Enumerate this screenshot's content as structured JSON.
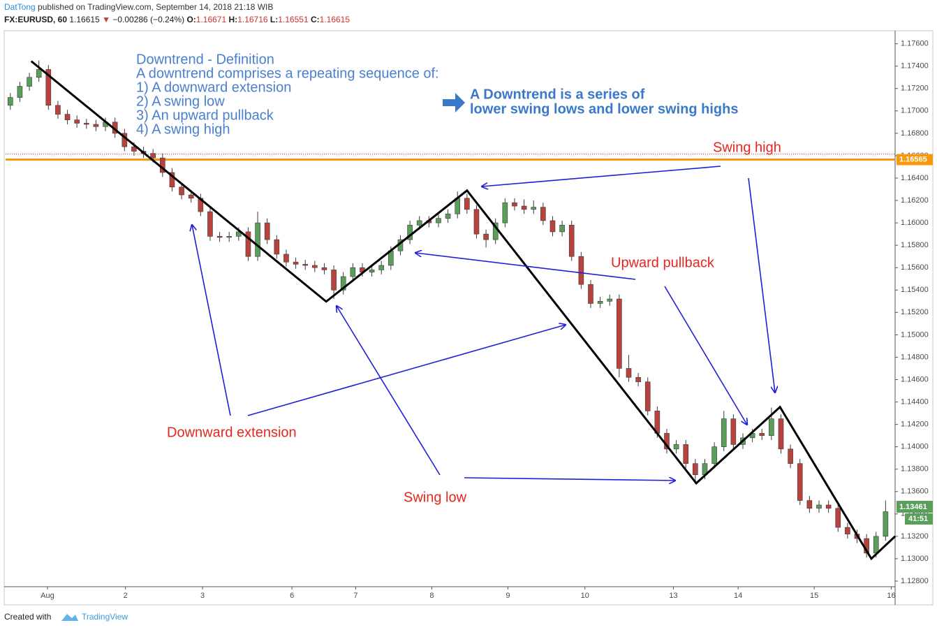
{
  "header": {
    "author": "DatTong",
    "published": "published on TradingView.com, September 14, 2018 21:18 WIB",
    "symbol": "FX:EURUSD, 60",
    "last": "1.16615",
    "change_icon": "▼",
    "change": "−0.00286 (−0.24%)",
    "o_label": "O:",
    "o": "1.16671",
    "h_label": "H:",
    "h": "1.16716",
    "l_label": "L:",
    "l": "1.16551",
    "c_label": "C:",
    "c": "1.16615"
  },
  "footer": {
    "created": "Created with",
    "brand": "TradingView"
  },
  "chart_data": {
    "type": "candlestick",
    "up_color": "#5a9e5c",
    "down_color": "#b8423d",
    "wick_color": "#3a3a3a",
    "ylim": [
      1.1275,
      1.1771
    ],
    "yticks": [
      {
        "value": 1.176,
        "label": "1.17600"
      },
      {
        "value": 1.174,
        "label": "1.17400"
      },
      {
        "value": 1.172,
        "label": "1.17200"
      },
      {
        "value": 1.17,
        "label": "1.17000"
      },
      {
        "value": 1.168,
        "label": "1.16800"
      },
      {
        "value": 1.166,
        "label": "1.16600"
      },
      {
        "value": 1.164,
        "label": "1.16400"
      },
      {
        "value": 1.162,
        "label": "1.16200"
      },
      {
        "value": 1.16,
        "label": "1.16000"
      },
      {
        "value": 1.158,
        "label": "1.15800"
      },
      {
        "value": 1.156,
        "label": "1.15600"
      },
      {
        "value": 1.154,
        "label": "1.15400"
      },
      {
        "value": 1.152,
        "label": "1.15200"
      },
      {
        "value": 1.15,
        "label": "1.15000"
      },
      {
        "value": 1.148,
        "label": "1.14800"
      },
      {
        "value": 1.146,
        "label": "1.14600"
      },
      {
        "value": 1.144,
        "label": "1.14400"
      },
      {
        "value": 1.142,
        "label": "1.14200"
      },
      {
        "value": 1.14,
        "label": "1.14000"
      },
      {
        "value": 1.138,
        "label": "1.13800"
      },
      {
        "value": 1.136,
        "label": "1.13600"
      },
      {
        "value": 1.134,
        "label": "1.13400"
      },
      {
        "value": 1.132,
        "label": "1.13200"
      },
      {
        "value": 1.13,
        "label": "1.13000"
      },
      {
        "value": 1.128,
        "label": "1.12800"
      }
    ],
    "xlim": [
      -0.5,
      93
    ],
    "xticks": [
      {
        "value": 3.9,
        "label": "Aug"
      },
      {
        "value": 12.1,
        "label": "2"
      },
      {
        "value": 20.2,
        "label": "3"
      },
      {
        "value": 29.6,
        "label": "6"
      },
      {
        "value": 36.3,
        "label": "7"
      },
      {
        "value": 44.3,
        "label": "8"
      },
      {
        "value": 52.3,
        "label": "9"
      },
      {
        "value": 60.4,
        "label": "10"
      },
      {
        "value": 69.7,
        "label": "13"
      },
      {
        "value": 76.5,
        "label": "14"
      },
      {
        "value": 84.5,
        "label": "15"
      },
      {
        "value": 92.6,
        "label": "16"
      }
    ],
    "grid": false,
    "ohlc": [
      [
        1.1705,
        1.1716,
        1.1701,
        1.1712
      ],
      [
        1.1712,
        1.1726,
        1.1708,
        1.1722
      ],
      [
        1.1722,
        1.1734,
        1.1718,
        1.173
      ],
      [
        1.173,
        1.1745,
        1.1726,
        1.1737
      ],
      [
        1.1737,
        1.1741,
        1.1701,
        1.1705
      ],
      [
        1.1705,
        1.1709,
        1.1693,
        1.1697
      ],
      [
        1.1697,
        1.1701,
        1.1688,
        1.1692
      ],
      [
        1.1692,
        1.1696,
        1.1685,
        1.1689
      ],
      [
        1.1689,
        1.1693,
        1.1684,
        1.1688
      ],
      [
        1.1688,
        1.1692,
        1.1682,
        1.1686
      ],
      [
        1.1686,
        1.1694,
        1.1682,
        1.169
      ],
      [
        1.169,
        1.1694,
        1.1676,
        1.168
      ],
      [
        1.168,
        1.1684,
        1.1664,
        1.1668
      ],
      [
        1.1668,
        1.1672,
        1.166,
        1.1664
      ],
      [
        1.1664,
        1.1668,
        1.1658,
        1.1662
      ],
      [
        1.1662,
        1.1666,
        1.1654,
        1.1658
      ],
      [
        1.1658,
        1.1662,
        1.1641,
        1.1645
      ],
      [
        1.1645,
        1.1649,
        1.1628,
        1.1632
      ],
      [
        1.1632,
        1.1636,
        1.1621,
        1.1625
      ],
      [
        1.1625,
        1.1629,
        1.1618,
        1.1622
      ],
      [
        1.1622,
        1.1626,
        1.1606,
        1.161
      ],
      [
        1.161,
        1.1614,
        1.1584,
        1.1588
      ],
      [
        1.1588,
        1.1592,
        1.1583,
        1.1587
      ],
      [
        1.1587,
        1.1592,
        1.1583,
        1.1588
      ],
      [
        1.1588,
        1.1596,
        1.1584,
        1.1592
      ],
      [
        1.1592,
        1.1596,
        1.1566,
        1.157
      ],
      [
        1.157,
        1.161,
        1.1566,
        1.16
      ],
      [
        1.16,
        1.1604,
        1.1581,
        1.1585
      ],
      [
        1.1585,
        1.1589,
        1.1568,
        1.1572
      ],
      [
        1.1572,
        1.1576,
        1.1561,
        1.1565
      ],
      [
        1.1565,
        1.1569,
        1.1559,
        1.1563
      ],
      [
        1.1563,
        1.1567,
        1.1558,
        1.1562
      ],
      [
        1.1562,
        1.1566,
        1.1556,
        1.156
      ],
      [
        1.156,
        1.1564,
        1.1554,
        1.1558
      ],
      [
        1.1558,
        1.1562,
        1.1532,
        1.154
      ],
      [
        1.154,
        1.1556,
        1.1536,
        1.1552
      ],
      [
        1.1552,
        1.1564,
        1.1548,
        1.156
      ],
      [
        1.156,
        1.1564,
        1.1552,
        1.1556
      ],
      [
        1.1556,
        1.1562,
        1.1552,
        1.1558
      ],
      [
        1.1558,
        1.1566,
        1.1554,
        1.1562
      ],
      [
        1.1562,
        1.1579,
        1.1558,
        1.1575
      ],
      [
        1.1575,
        1.1589,
        1.1571,
        1.1585
      ],
      [
        1.1585,
        1.1602,
        1.1581,
        1.1598
      ],
      [
        1.1598,
        1.1606,
        1.1594,
        1.1602
      ],
      [
        1.1602,
        1.1606,
        1.1596,
        1.16
      ],
      [
        1.16,
        1.1608,
        1.1596,
        1.1604
      ],
      [
        1.1604,
        1.1612,
        1.16,
        1.1608
      ],
      [
        1.1608,
        1.1628,
        1.1604,
        1.1622
      ],
      [
        1.1622,
        1.1626,
        1.1608,
        1.1612
      ],
      [
        1.1612,
        1.1616,
        1.1586,
        1.159
      ],
      [
        1.159,
        1.1594,
        1.1578,
        1.1585
      ],
      [
        1.1585,
        1.1604,
        1.1581,
        1.16
      ],
      [
        1.16,
        1.1622,
        1.1596,
        1.1618
      ],
      [
        1.1618,
        1.1622,
        1.1611,
        1.1615
      ],
      [
        1.1615,
        1.1621,
        1.1608,
        1.1612
      ],
      [
        1.1612,
        1.162,
        1.1608,
        1.1614
      ],
      [
        1.1614,
        1.1618,
        1.1598,
        1.1602
      ],
      [
        1.1602,
        1.1606,
        1.1588,
        1.1592
      ],
      [
        1.1592,
        1.1602,
        1.1588,
        1.1598
      ],
      [
        1.1598,
        1.1602,
        1.1566,
        1.157
      ],
      [
        1.157,
        1.1574,
        1.1541,
        1.1545
      ],
      [
        1.1545,
        1.1549,
        1.1524,
        1.1528
      ],
      [
        1.1528,
        1.1534,
        1.1524,
        1.153
      ],
      [
        1.153,
        1.1536,
        1.1526,
        1.1532
      ],
      [
        1.1532,
        1.1536,
        1.1462,
        1.147
      ],
      [
        1.147,
        1.1482,
        1.1458,
        1.1462
      ],
      [
        1.1462,
        1.1466,
        1.1454,
        1.1458
      ],
      [
        1.1458,
        1.1462,
        1.1428,
        1.1432
      ],
      [
        1.1432,
        1.1436,
        1.1408,
        1.1412
      ],
      [
        1.1412,
        1.1416,
        1.1394,
        1.1398
      ],
      [
        1.1398,
        1.1406,
        1.1394,
        1.1402
      ],
      [
        1.1402,
        1.1406,
        1.1381,
        1.1385
      ],
      [
        1.1385,
        1.1389,
        1.1367,
        1.1375
      ],
      [
        1.1375,
        1.1389,
        1.1371,
        1.1385
      ],
      [
        1.1385,
        1.1404,
        1.1381,
        1.14
      ],
      [
        1.14,
        1.1432,
        1.1396,
        1.1425
      ],
      [
        1.1425,
        1.1429,
        1.1398,
        1.1402
      ],
      [
        1.1402,
        1.1412,
        1.1398,
        1.1408
      ],
      [
        1.1408,
        1.1416,
        1.1404,
        1.1412
      ],
      [
        1.1412,
        1.1416,
        1.1406,
        1.141
      ],
      [
        1.141,
        1.1435,
        1.1406,
        1.1425
      ],
      [
        1.1425,
        1.1429,
        1.1394,
        1.1398
      ],
      [
        1.1398,
        1.1402,
        1.1381,
        1.1385
      ],
      [
        1.1385,
        1.1389,
        1.1348,
        1.1352
      ],
      [
        1.1352,
        1.1356,
        1.1341,
        1.1345
      ],
      [
        1.1345,
        1.1352,
        1.1341,
        1.1348
      ],
      [
        1.1348,
        1.1352,
        1.1341,
        1.1345
      ],
      [
        1.1345,
        1.1349,
        1.1324,
        1.1328
      ],
      [
        1.1328,
        1.1332,
        1.1318,
        1.1322
      ],
      [
        1.1322,
        1.1326,
        1.1314,
        1.1318
      ],
      [
        1.1318,
        1.1322,
        1.1301,
        1.1305
      ],
      [
        1.1305,
        1.1324,
        1.1301,
        1.132
      ],
      [
        1.132,
        1.1352,
        1.1316,
        1.1342
      ]
    ],
    "zigzag": {
      "x": [
        2.2,
        33.2,
        48.0,
        72.1,
        80.9,
        90.5,
        93.0
      ],
      "y": [
        1.17444,
        1.15297,
        1.16289,
        1.13674,
        1.14355,
        1.13,
        1.132
      ]
    },
    "price_line": 1.16565,
    "price_line_color": "#f59a0c",
    "dotted_line": 1.16614,
    "last_price": 1.13461,
    "countdown": "41:51",
    "definition": [
      "Downtrend - Definition",
      "A downtrend comprises a repeating sequence of:",
      "1) A downward extension",
      "2) A swing low",
      "3) An upward pullback",
      "4) A swing high"
    ],
    "callout": [
      "A Downtrend is a series of",
      "lower swing lows and lower swing highs"
    ],
    "labels": {
      "swing_high": "Swing high",
      "upward_pullback": "Upward pullback",
      "downward_extension": "Downward extension",
      "swing_low": "Swing low"
    }
  }
}
